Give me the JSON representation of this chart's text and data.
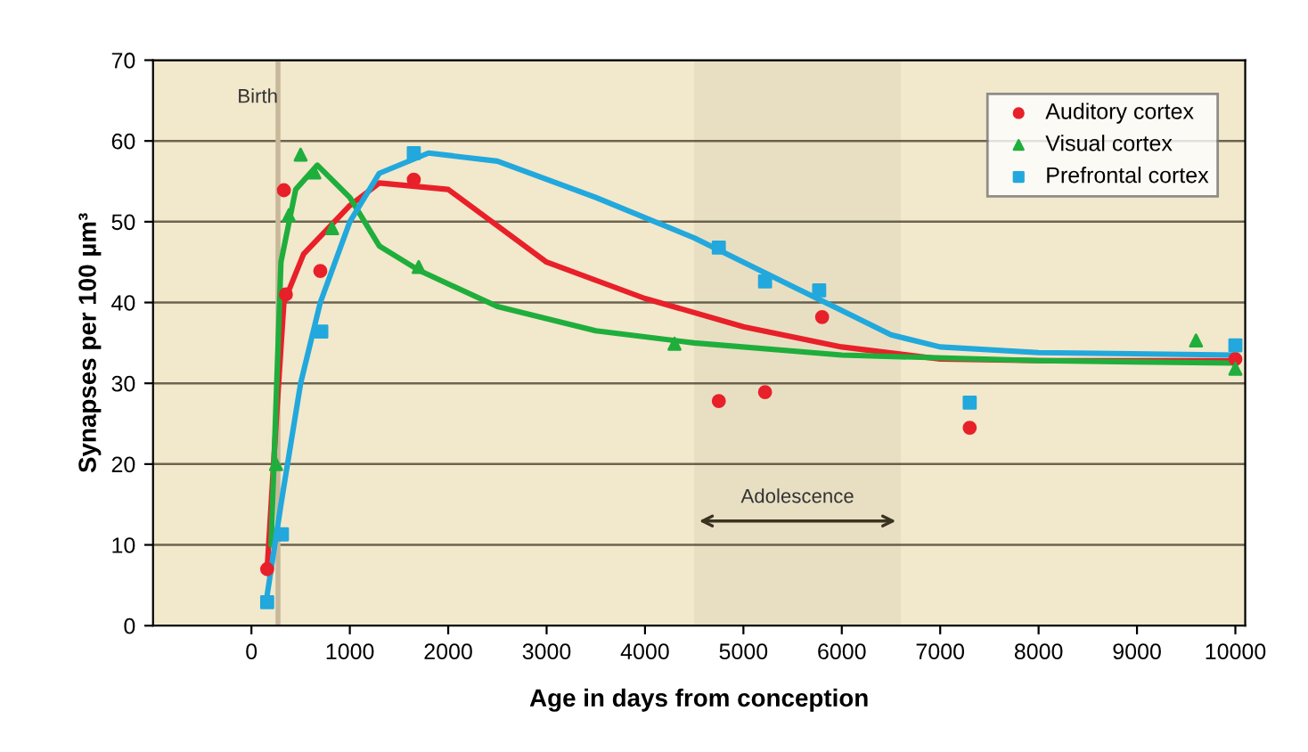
{
  "chart_data": {
    "type": "scatter",
    "xlabel": "Age in days from conception",
    "ylabel": "Synapses per 100 µm³",
    "xlim": [
      -1000,
      10100
    ],
    "ylim": [
      0,
      70
    ],
    "xticks": [
      0,
      1000,
      2000,
      3000,
      4000,
      5000,
      6000,
      7000,
      8000,
      9000,
      10000
    ],
    "yticks": [
      0,
      10,
      20,
      30,
      40,
      50,
      60,
      70
    ],
    "grid": "y",
    "legend": "top right",
    "series": [
      {
        "type": "line",
        "color": "#e8202a",
        "x": [
          160,
          250,
          330,
          530,
          1000,
          1300,
          2000,
          3000,
          4000,
          5000,
          6000,
          7000,
          8000,
          10000
        ],
        "values": [
          7,
          25,
          40,
          46,
          52,
          54.8,
          54,
          45,
          40.5,
          37,
          34.5,
          33,
          32.8,
          32.8
        ]
      },
      {
        "type": "line",
        "color": "#1fae3c",
        "x": [
          200,
          300,
          450,
          670,
          1000,
          1300,
          1700,
          2500,
          3500,
          4500,
          6000,
          8000,
          10000
        ],
        "values": [
          10,
          45,
          54,
          57,
          53,
          47,
          44,
          39.5,
          36.5,
          35,
          33.5,
          32.8,
          32.5
        ]
      },
      {
        "type": "line",
        "color": "#22a8dc",
        "x": [
          150,
          300,
          500,
          700,
          1000,
          1300,
          1800,
          2500,
          3500,
          4500,
          5000,
          5500,
          6000,
          6500,
          7000,
          8000,
          10000
        ],
        "values": [
          3,
          15,
          30,
          40,
          50,
          56,
          58.5,
          57.5,
          53,
          48,
          45,
          42,
          39,
          36,
          34.5,
          33.8,
          33.5
        ]
      },
      {
        "name": "Auditory cortex",
        "marker": "circle",
        "color": "#e8202a",
        "x": [
          160,
          330,
          350,
          700,
          1650,
          4750,
          5220,
          5800,
          7300,
          10000
        ],
        "values": [
          7,
          53.9,
          41,
          43.9,
          55.2,
          27.8,
          28.9,
          38.2,
          24.5,
          33
        ]
      },
      {
        "name": "Visual cortex",
        "marker": "triangle",
        "color": "#1fae3c",
        "x": [
          250,
          380,
          500,
          640,
          820,
          1700,
          4300,
          9600,
          10000
        ],
        "values": [
          20,
          50.8,
          58.3,
          56.1,
          49.2,
          44.4,
          34.9,
          35.3,
          31.8
        ]
      },
      {
        "name": "Prefrontal cortex",
        "marker": "square",
        "color": "#22a8dc",
        "x": [
          160,
          310,
          710,
          1650,
          4750,
          5220,
          5770,
          7300,
          10000
        ],
        "values": [
          2.9,
          11.3,
          36.4,
          58.5,
          46.8,
          42.6,
          41.5,
          27.6,
          34.7
        ]
      }
    ],
    "ref_lines": [
      {
        "axis": "x",
        "value": 270,
        "label": "Birth",
        "color": "#c8b89a"
      }
    ],
    "bands": [
      {
        "axis": "x",
        "from": 4500,
        "to": 6600,
        "label": "Adolescence",
        "color": "#3a3320"
      }
    ]
  }
}
